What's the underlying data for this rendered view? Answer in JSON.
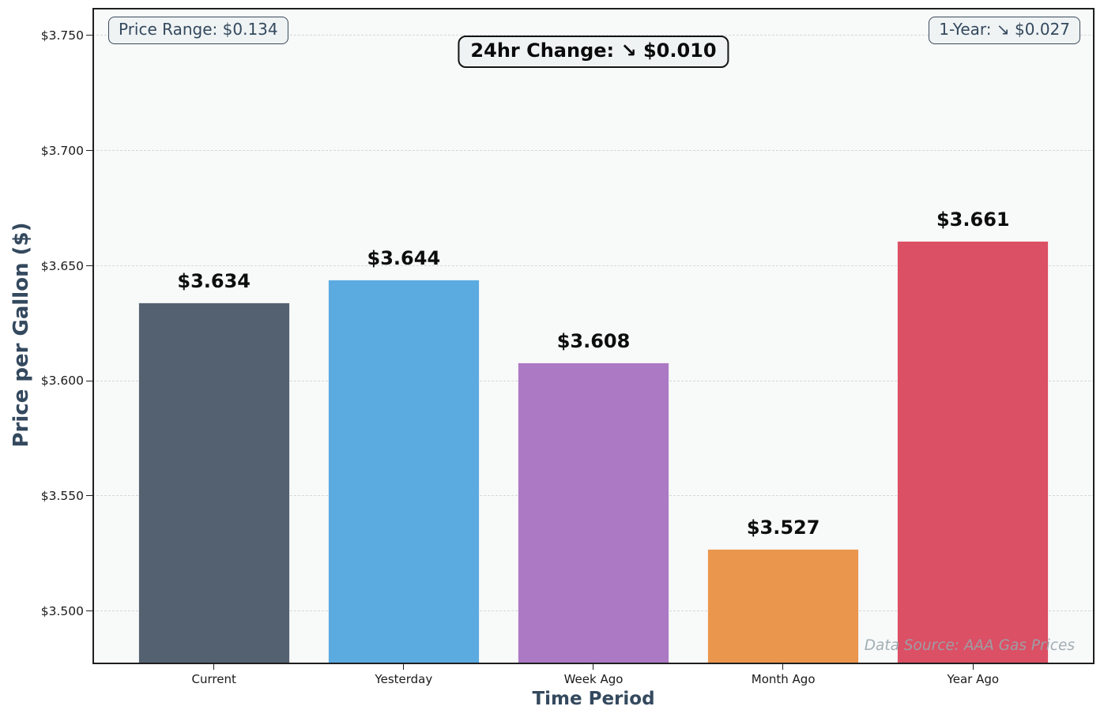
{
  "chart_data": {
    "type": "bar",
    "categories": [
      "Current",
      "Yesterday",
      "Week Ago",
      "Month Ago",
      "Year Ago"
    ],
    "values": [
      3.634,
      3.644,
      3.608,
      3.527,
      3.661
    ],
    "bar_labels": [
      "$3.634",
      "$3.644",
      "$3.608",
      "$3.527",
      "$3.661"
    ],
    "bar_colors": [
      "#546170",
      "#5BAAE0",
      "#AC79C4",
      "#EA964D",
      "#DB5064"
    ],
    "xlabel": "Time Period",
    "ylabel": "Price per Gallon ($)",
    "ylim": [
      3.477,
      3.762
    ],
    "yticks": [
      3.5,
      3.55,
      3.6,
      3.65,
      3.7,
      3.75
    ],
    "ytick_labels": [
      "$3.500",
      "$3.550",
      "$3.600",
      "$3.650",
      "$3.700",
      "$3.750"
    ],
    "grid": true,
    "grid_style": "dashed-horizontal",
    "legend": false
  },
  "annotations": {
    "price_range": "Price Range: $0.134",
    "change_24hr": "24hr Change: ↘ $0.010",
    "one_year": "1-Year: ↘ $0.027",
    "data_source": "Data Source: AAA Gas Prices"
  },
  "colors": {
    "figure_bg": "#ffffff",
    "plot_bg": "#f8f9f9",
    "grid": "#d4d8dc",
    "spine": "#1f1f1f",
    "axis_title": "#34495e",
    "tick_text": "#1a1a1a",
    "bar_value_text": "#0d0d0d",
    "annotation_bg": "#eef2f3",
    "annotation_border": "#3b4a5a",
    "annotation_center_border": "#141414",
    "data_source_text": "#98a5ac"
  }
}
